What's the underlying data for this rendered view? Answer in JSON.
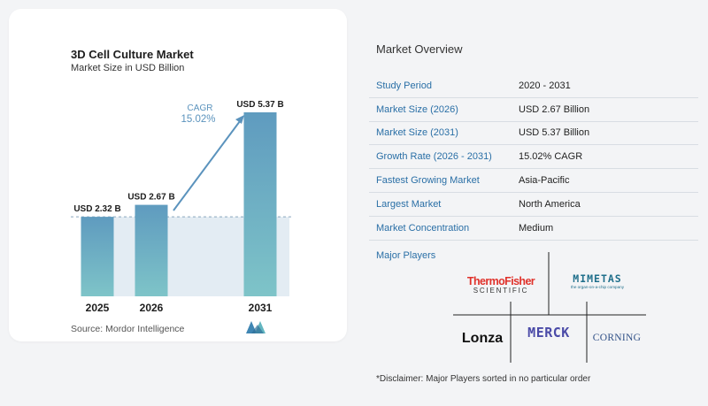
{
  "chart_data": {
    "type": "bar",
    "title": "3D Cell Culture Market",
    "subtitle": "Market Size in USD Billion",
    "categories": [
      "2025",
      "2026",
      "2031"
    ],
    "values": [
      2.32,
      2.67,
      5.37
    ],
    "data_labels": [
      "USD 2.32 B",
      "USD 2.67 B",
      "USD 5.37 B"
    ],
    "cagr_label": "CAGR",
    "cagr_value": "15.02%",
    "bar_color": "#5f9bbf",
    "bar_color_bottom": "#7ec4c8",
    "baseline_band_color": "#e3ecf3"
  },
  "source": "Source:  Mordor Intelligence",
  "overview": {
    "title": "Market Overview",
    "rows": [
      {
        "key": "Study Period",
        "value": "2020 - 2031"
      },
      {
        "key": "Market Size (2026)",
        "value": "USD 2.67 Billion"
      },
      {
        "key": "Market Size (2031)",
        "value": "USD 5.37 Billion"
      },
      {
        "key": "Growth Rate (2026 - 2031)",
        "value": "15.02% CAGR"
      },
      {
        "key": "Fastest Growing Market",
        "value": "Asia-Pacific"
      },
      {
        "key": "Largest Market",
        "value": "North America"
      },
      {
        "key": "Market Concentration",
        "value": "Medium"
      }
    ],
    "players_title": "Major Players",
    "players": {
      "thermo_top": "ThermoFisher",
      "thermo_bottom": "SCIENTIFIC",
      "mimetas": "MIMETAS",
      "mimetas_tag": "the organ-on-a-chip company",
      "lonza": "Lonza",
      "merck": "MERCK",
      "corning": "CORNING"
    },
    "disclaimer": "*Disclaimer: Major Players sorted in no particular order"
  },
  "colors": {
    "key_text": "#2a6fa6",
    "arrow": "#5b93bd",
    "thermo_red": "#e0322b",
    "mimetas_teal": "#1f6f8b",
    "merck_blue": "#4b4ba8"
  }
}
